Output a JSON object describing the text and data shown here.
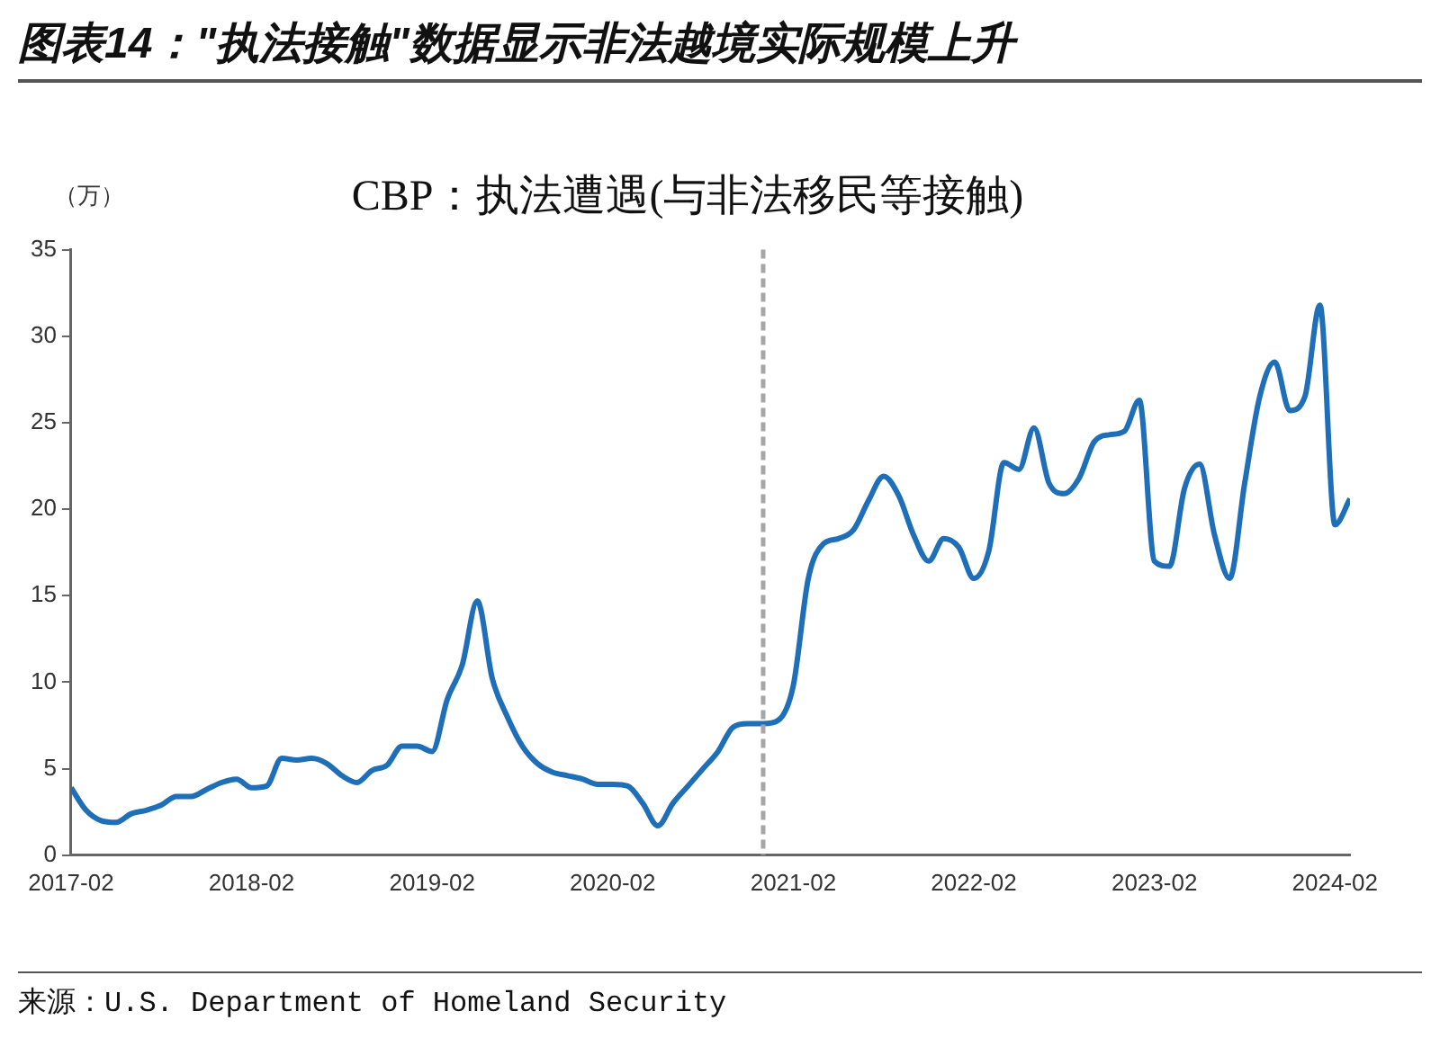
{
  "chart_data": {
    "type": "line",
    "title": "图表14：\"执法接触\"数据显示非法越境实际规模上升",
    "subtitle": "CBP：执法遭遇(与非法移民等接触)",
    "ylabel": "（万）",
    "annotations": [
      "来源：U.S. Department of Homeland Security"
    ],
    "x": [
      "2017-02",
      "2017-03",
      "2017-04",
      "2017-05",
      "2017-06",
      "2017-07",
      "2017-08",
      "2017-09",
      "2017-10",
      "2017-11",
      "2017-12",
      "2018-01",
      "2018-02",
      "2018-03",
      "2018-04",
      "2018-05",
      "2018-06",
      "2018-07",
      "2018-08",
      "2018-09",
      "2018-10",
      "2018-11",
      "2018-12",
      "2019-01",
      "2019-02",
      "2019-03",
      "2019-04",
      "2019-05",
      "2019-06",
      "2019-07",
      "2019-08",
      "2019-09",
      "2019-10",
      "2019-11",
      "2019-12",
      "2020-01",
      "2020-02",
      "2020-03",
      "2020-04",
      "2020-05",
      "2020-06",
      "2020-07",
      "2020-08",
      "2020-09",
      "2020-10",
      "2020-11",
      "2020-12",
      "2021-01",
      "2021-02",
      "2021-03",
      "2021-04",
      "2021-05",
      "2021-06",
      "2021-07",
      "2021-08",
      "2021-09",
      "2021-10",
      "2021-11",
      "2021-12",
      "2022-01",
      "2022-02",
      "2022-03",
      "2022-04",
      "2022-05",
      "2022-06",
      "2022-07",
      "2022-08",
      "2022-09",
      "2022-10",
      "2022-11",
      "2022-12",
      "2023-01",
      "2023-02",
      "2023-03",
      "2023-04",
      "2023-05",
      "2023-06",
      "2023-07",
      "2023-08",
      "2023-09",
      "2023-10",
      "2023-11",
      "2023-12",
      "2024-01",
      "2024-02",
      "2024-03"
    ],
    "series": [
      {
        "color": "#1f6fb8",
        "values": [
          3.9,
          2.6,
          2.0,
          1.9,
          2.4,
          2.6,
          2.9,
          3.4,
          3.4,
          3.8,
          4.2,
          4.4,
          3.9,
          4.0,
          5.6,
          5.5,
          5.6,
          5.3,
          4.6,
          4.2,
          4.9,
          5.2,
          6.3,
          6.3,
          6.0,
          9.0,
          11.0,
          14.7,
          10.2,
          8.0,
          6.3,
          5.3,
          4.8,
          4.6,
          4.4,
          4.1,
          4.1,
          4.0,
          3.0,
          1.7,
          3.0,
          4.0,
          5.0,
          6.0,
          7.4,
          7.6,
          7.6,
          7.8,
          9.8,
          16.0,
          18.0,
          18.3,
          18.8,
          20.5,
          21.9,
          20.8,
          18.5,
          17.0,
          18.3,
          17.8,
          16.0,
          17.6,
          22.7,
          22.3,
          24.7,
          21.5,
          20.9,
          21.8,
          23.9,
          24.3,
          24.5,
          26.3,
          17.0,
          16.7,
          21.2,
          22.6,
          18.5,
          16.0,
          21.5,
          26.5,
          28.5,
          25.7,
          26.5,
          31.8,
          19.1,
          20.6
        ]
      }
    ],
    "xlim": [
      "2017-02",
      "2024-03"
    ],
    "xticks": [
      "2017-02",
      "2018-02",
      "2019-02",
      "2020-02",
      "2021-02",
      "2022-02",
      "2023-02",
      "2024-02"
    ],
    "ylim": [
      0,
      35
    ],
    "yticks": [
      0,
      5,
      10,
      15,
      20,
      25,
      30,
      35
    ],
    "ref_lines": [
      {
        "axis": "x",
        "value": "2020-12",
        "color": "#a6a6a6",
        "line_style": "dashed"
      }
    ],
    "grid": false,
    "legend": false,
    "marker": "none",
    "line_style": "solid"
  }
}
